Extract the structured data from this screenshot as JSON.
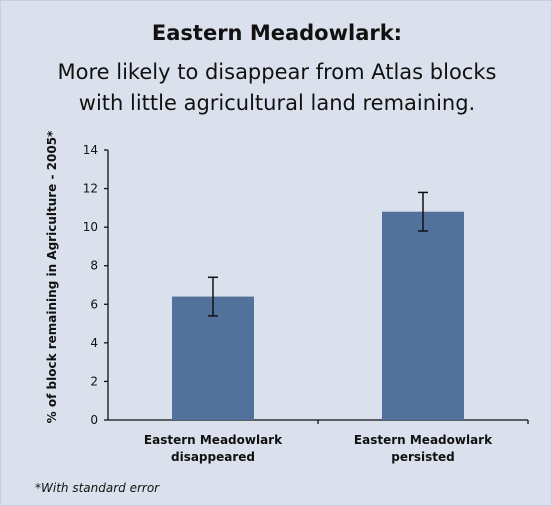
{
  "chart_data": {
    "type": "bar",
    "title": "Eastern Meadowlark:",
    "subtitle": "More likely to disappear from Atlas blocks with little agricultural land remaining.",
    "xlabel": "",
    "ylabel": "% of block remaining in Agriculture - 2005*",
    "categories": [
      [
        "Eastern Meadowlark",
        "disappeared"
      ],
      [
        "Eastern Meadowlark",
        "persisted"
      ]
    ],
    "values": [
      6.4,
      10.8
    ],
    "error_bars": [
      1.0,
      1.0
    ],
    "ylim": [
      0,
      14
    ],
    "yticks": [
      "0",
      "2",
      "4",
      "6",
      "8",
      "10",
      "12",
      "14"
    ],
    "grid": false,
    "footnote": "*With standard error",
    "colors": {
      "bar": "#52729c",
      "background": "#dbe1ec",
      "axis": "#111111"
    }
  }
}
